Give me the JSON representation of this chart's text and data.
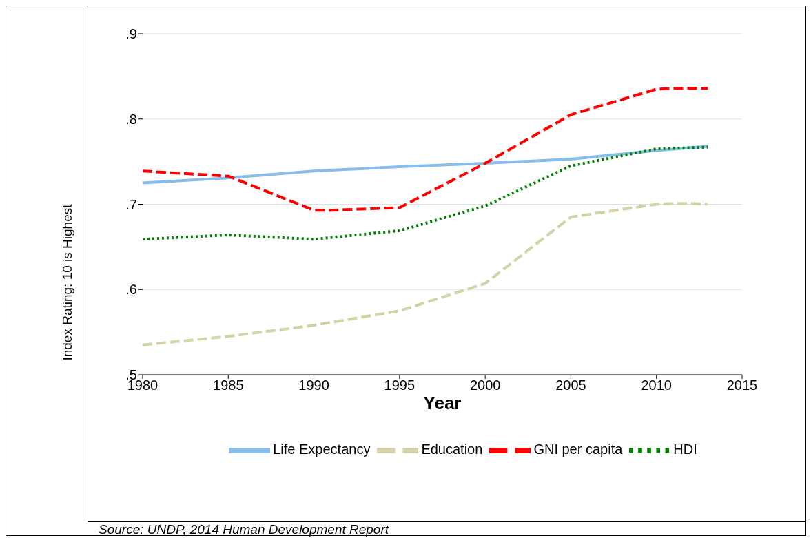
{
  "chart_data": {
    "type": "line",
    "xlabel": "Year",
    "ylabel": "Index Rating:  10 is Highest",
    "xlim": [
      1980,
      2015
    ],
    "xticks": [
      1980,
      1985,
      1990,
      1995,
      2000,
      2005,
      2010,
      2015
    ],
    "ylim": [
      0.5,
      0.9
    ],
    "yticks": [
      {
        "value": 0.5,
        "label": ".5"
      },
      {
        "value": 0.6,
        "label": ".6"
      },
      {
        "value": 0.7,
        "label": ".7"
      },
      {
        "value": 0.8,
        "label": ".8"
      },
      {
        "value": 0.9,
        "label": ".9"
      }
    ],
    "grid": "y",
    "legend": "bottom",
    "marker": "none",
    "series": [
      {
        "name": "Life Expectancy",
        "color": "#87bdeb",
        "line_style": "solid",
        "x": [
          1980,
          1985,
          1990,
          1995,
          2000,
          2005,
          2010,
          2013
        ],
        "values": [
          0.725,
          0.731,
          0.739,
          0.744,
          0.748,
          0.753,
          0.763,
          0.768
        ]
      },
      {
        "name": "Education",
        "color": "#d6d2a8",
        "line_style": "dashed",
        "x": [
          1980,
          1985,
          1990,
          1995,
          2000,
          2005,
          2010,
          2011,
          2012,
          2013
        ],
        "values": [
          0.535,
          0.545,
          0.558,
          0.575,
          0.607,
          0.685,
          0.7,
          0.701,
          0.701,
          0.7
        ]
      },
      {
        "name": "GNI per capita",
        "color": "#ff0000",
        "line_style": "dashed",
        "x": [
          1980,
          1985,
          1990,
          1991,
          1995,
          2000,
          2005,
          2010,
          2011,
          2012,
          2013
        ],
        "values": [
          0.739,
          0.733,
          0.693,
          0.693,
          0.696,
          0.748,
          0.805,
          0.835,
          0.836,
          0.836,
          0.836
        ]
      },
      {
        "name": "HDI",
        "color": "#008000",
        "line_style": "dotted",
        "x": [
          1980,
          1985,
          1990,
          1995,
          2000,
          2005,
          2010,
          2013
        ],
        "values": [
          0.659,
          0.664,
          0.659,
          0.669,
          0.698,
          0.745,
          0.765,
          0.767
        ]
      }
    ],
    "annotations": [
      "Source: UNDP, 2014 Human Development Report"
    ]
  }
}
